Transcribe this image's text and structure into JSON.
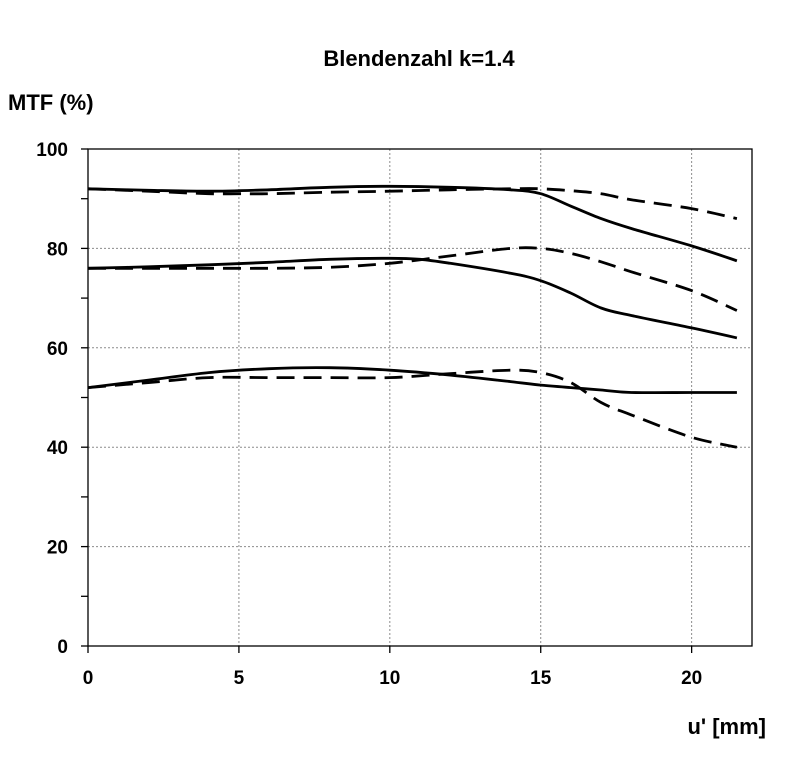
{
  "chart_data": {
    "type": "line",
    "title": "Blendenzahl k=1.4",
    "xlabel": "u' [mm]",
    "ylabel": "MTF (%)",
    "xlim": [
      0,
      22
    ],
    "ylim": [
      0,
      100
    ],
    "xticks": [
      0,
      5,
      10,
      15,
      20
    ],
    "yticks": [
      0,
      20,
      40,
      60,
      80,
      100
    ],
    "grid": true,
    "series": [
      {
        "style": "solid",
        "x": [
          0,
          2,
          4,
          6,
          8,
          10,
          12,
          14,
          15,
          16,
          17,
          18,
          20,
          21.5
        ],
        "y": [
          92,
          91.7,
          91.5,
          91.8,
          92.3,
          92.5,
          92.3,
          91.8,
          91,
          88.5,
          86,
          84,
          80.5,
          77.5
        ]
      },
      {
        "style": "dashed",
        "x": [
          0,
          2,
          4,
          5,
          6,
          8,
          10,
          12,
          14,
          15,
          16,
          17,
          18,
          20,
          21.5
        ],
        "y": [
          92,
          91.5,
          91,
          91,
          91,
          91.3,
          91.5,
          91.8,
          92,
          92,
          91.6,
          91,
          89.8,
          88,
          86
        ]
      },
      {
        "style": "solid",
        "x": [
          0,
          2,
          4,
          6,
          8,
          10,
          11,
          12,
          14,
          15,
          16,
          17,
          18,
          20,
          21.5
        ],
        "y": [
          76,
          76.3,
          76.7,
          77.2,
          77.8,
          78,
          77.8,
          77,
          75,
          73.5,
          71,
          68,
          66.5,
          64,
          62
        ]
      },
      {
        "style": "dashed",
        "x": [
          0,
          2,
          4,
          6,
          8,
          10,
          12,
          14,
          15,
          16,
          17,
          18,
          20,
          21.5
        ],
        "y": [
          76,
          76,
          76,
          76,
          76.2,
          77,
          78.5,
          80,
          80,
          79,
          77.3,
          75.3,
          71.5,
          67.5
        ]
      },
      {
        "style": "solid",
        "x": [
          0,
          2,
          4,
          6,
          8,
          10,
          12,
          14,
          15,
          16,
          17,
          18,
          20,
          21.5
        ],
        "y": [
          52,
          53.5,
          55,
          55.8,
          56,
          55.5,
          54.5,
          53.2,
          52.5,
          52,
          51.5,
          51,
          51,
          51
        ]
      },
      {
        "style": "dashed",
        "x": [
          0,
          2,
          4,
          6,
          8,
          10,
          12,
          14,
          15,
          16,
          17,
          18,
          20,
          21.5
        ],
        "y": [
          52,
          53,
          54,
          54,
          54,
          54,
          54.8,
          55.5,
          55,
          53,
          49,
          46.5,
          42,
          40
        ]
      }
    ]
  }
}
